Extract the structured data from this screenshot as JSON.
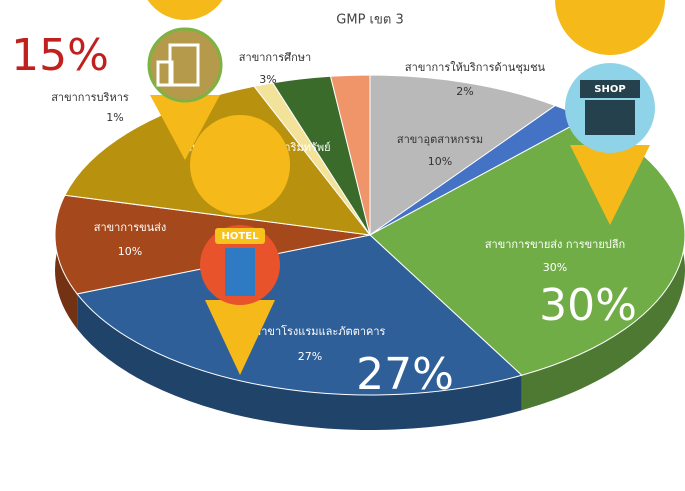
{
  "chart_data": {
    "type": "pie",
    "title": "GMP เขต 3",
    "categories": [
      "สาขาอุตสาหกรรม",
      null,
      "สาขาการขายส่ง การขายปลีก",
      "สาขาโรงแรมและภัตตาคาร",
      "สาขาการขนส่ง",
      "สาขาบริการด้านอสังหาริมทรัพย์",
      "สาขาการบริหาร",
      "สาขาการศึกษา",
      "สาขาการให้บริการด้านชุมชน"
    ],
    "values": [
      10,
      2,
      30,
      27,
      10,
      15,
      1,
      3,
      2
    ],
    "value_labels": [
      "10%",
      null,
      "30%",
      "27%",
      "10%",
      "15%",
      "1%",
      "3%",
      "2%"
    ],
    "colors": [
      "#b9b9b9",
      "#4472c4",
      "#70ad47",
      "#2e5f98",
      "#a5481c",
      "#b8920e",
      "#f3e29a",
      "#3a6b2a",
      "#f0956a"
    ],
    "annotations": [
      "15%",
      "30%",
      "27%"
    ]
  }
}
